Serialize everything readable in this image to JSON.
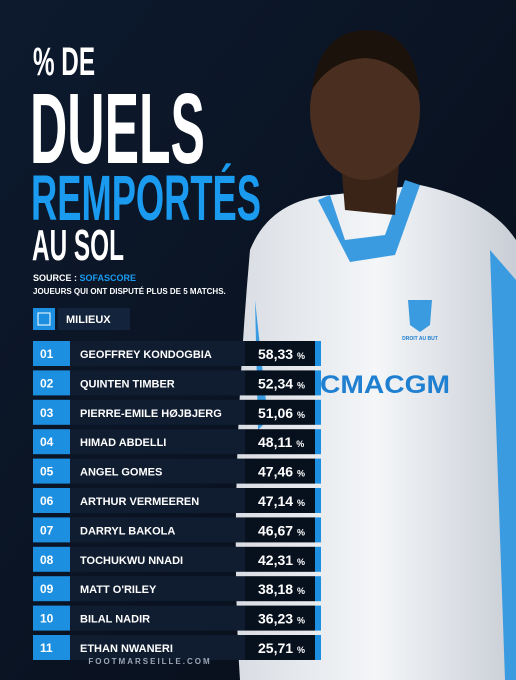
{
  "header": {
    "line1": "% DE",
    "line2": "DUELS",
    "line3": "REMPORTÉS",
    "line4": "AU SOL"
  },
  "source": {
    "label": "SOURCE :",
    "name": "SOFASCORE",
    "note": "JOUEURS QUI ONT DISPUTÉ PLUS DE 5 MATCHS."
  },
  "section": "MILIEUX",
  "table": {
    "unit": "%",
    "rows": [
      [
        "01",
        "GEOFFREY KONDOGBIA",
        "58,33"
      ],
      [
        "02",
        "QUINTEN TIMBER",
        "52,34"
      ],
      [
        "03",
        "PIERRE-EMILE HØJBJERG",
        "51,06"
      ],
      [
        "04",
        "HIMAD ABDELLI",
        "48,11"
      ],
      [
        "05",
        "ANGEL GOMES",
        "47,46"
      ],
      [
        "06",
        "ARTHUR VERMEEREN",
        "47,14"
      ],
      [
        "07",
        "DARRYL BAKOLA",
        "46,67"
      ],
      [
        "08",
        "TOCHUKWU NNADI",
        "42,31"
      ],
      [
        "09",
        "MATT O'RILEY",
        "38,18"
      ],
      [
        "10",
        "BILAL NADIR",
        "36,23"
      ],
      [
        "11",
        "ETHAN NWANERI",
        "25,71"
      ]
    ]
  },
  "photo": {
    "badge": "DROIT AU BUT",
    "sponsor": "CMACGM"
  },
  "footer": "FOOTMARSEILLE.COM"
}
